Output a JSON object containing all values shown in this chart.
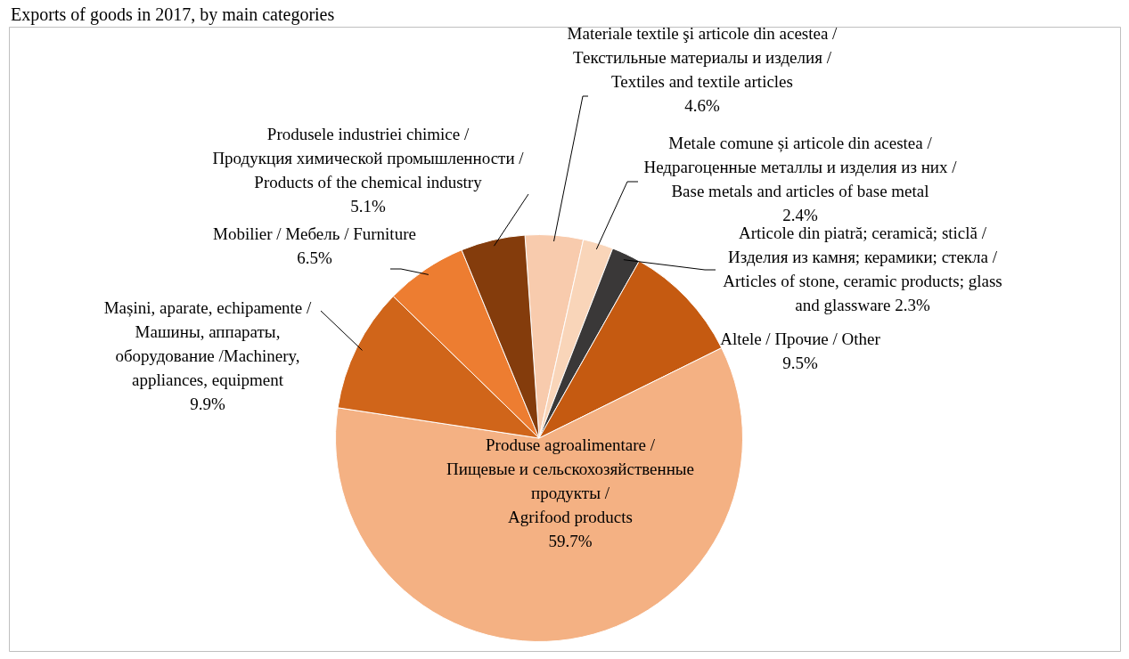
{
  "chart_data": {
    "type": "pie",
    "title": "Exports of goods in 2017, by main categories",
    "categories": [
      "Materiale textile şi articole din acestea /\nТекстильные материалы и изделия /\nTextiles and textile articles",
      "Metale comune și articole din acestea /\nНедрагоценные металлы и изделия из них /\nBase metals and articles of base metal",
      "Articole din piatră; ceramică; sticlă /\nИзделия из камня; керамики; стекла /\nArticles of stone, ceramic products; glass\nand glassware",
      "Altele / Прочие / Other",
      "Produse agroalimentare /\nПищевые и сельскохозяйственные\nпродукты /\nAgrifood products",
      "Mașini, aparate, echipamente /\nМашины, аппараты,\nоборудование /Machinery,\nappliances, equipment",
      "Mobilier / Мебель / Furniture",
      "Produsele industriei chimice /\nПродукция химической промышленности /\nProducts of the chemical industry"
    ],
    "values": [
      4.6,
      2.4,
      2.3,
      9.5,
      59.7,
      9.9,
      6.5,
      5.1
    ],
    "value_labels": [
      "4.6%",
      "2.4%",
      "2.3%",
      "9.5%",
      "59.7%",
      "9.9%",
      "6.5%",
      "5.1%"
    ],
    "colors": [
      "#f8cbad",
      "#f9d5b9",
      "#3a3838",
      "#c55a11",
      "#f4b183",
      "#d0651a",
      "#ed7d31",
      "#843c0c"
    ],
    "legend": false
  }
}
